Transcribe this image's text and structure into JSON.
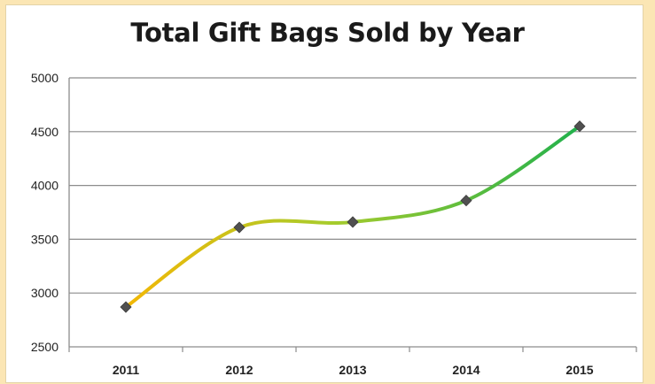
{
  "chart_data": {
    "type": "line",
    "title": "Total Gift Bags Sold by Year",
    "xlabel": "",
    "ylabel": "",
    "categories": [
      "2011",
      "2012",
      "2013",
      "2014",
      "2015"
    ],
    "series": [
      {
        "values": [
          2870,
          3610,
          3660,
          3860,
          4550
        ]
      }
    ],
    "ylim": [
      2500,
      5000
    ],
    "yticks": [
      "2500",
      "3000",
      "3500",
      "4000",
      "4500",
      "5000"
    ],
    "grid": true,
    "line_style": "smooth",
    "marker": "diamond",
    "colors": {
      "line_start": "#f2b705",
      "line_mid": "#a8cc2c",
      "line_end": "#22b14c",
      "marker": "#505050",
      "grid": "#8c8c8c",
      "axis": "#8c8c8c"
    }
  }
}
